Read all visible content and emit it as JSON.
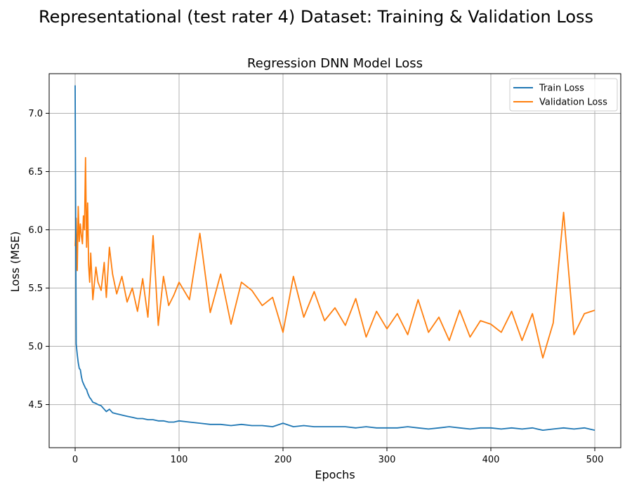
{
  "figure": {
    "suptitle": "Representational (test rater 4) Dataset: Training & Validation Loss"
  },
  "chart_data": {
    "type": "line",
    "title": "Regression DNN Model Loss",
    "xlabel": "Epochs",
    "ylabel": "Loss (MSE)",
    "xlim": [
      -25,
      525
    ],
    "ylim": [
      4.13,
      7.34
    ],
    "xticks": [
      0,
      100,
      200,
      300,
      400,
      500
    ],
    "yticks": [
      4.5,
      5.0,
      5.5,
      6.0,
      6.5,
      7.0
    ],
    "xtick_labels": [
      "0",
      "100",
      "200",
      "300",
      "400",
      "500"
    ],
    "ytick_labels": [
      "4.5",
      "5.0",
      "5.5",
      "6.0",
      "6.5",
      "7.0"
    ],
    "grid": true,
    "legend_position": "top-right",
    "x": [
      0,
      1,
      2,
      3,
      4,
      5,
      6,
      7,
      8,
      9,
      10,
      11,
      12,
      13,
      14,
      15,
      17,
      20,
      22,
      25,
      28,
      30,
      33,
      36,
      40,
      45,
      50,
      55,
      60,
      65,
      70,
      75,
      80,
      85,
      90,
      95,
      100,
      110,
      120,
      130,
      140,
      150,
      160,
      170,
      180,
      190,
      200,
      210,
      220,
      230,
      240,
      250,
      260,
      270,
      280,
      290,
      300,
      310,
      320,
      330,
      340,
      350,
      360,
      370,
      380,
      390,
      400,
      410,
      420,
      430,
      440,
      450,
      460,
      470,
      480,
      490,
      500
    ],
    "series": [
      {
        "name": "Train Loss",
        "color": "#1f77b4",
        "values": [
          7.24,
          5.02,
          4.93,
          4.86,
          4.81,
          4.8,
          4.74,
          4.7,
          4.68,
          4.66,
          4.64,
          4.63,
          4.6,
          4.58,
          4.56,
          4.55,
          4.52,
          4.51,
          4.5,
          4.49,
          4.46,
          4.44,
          4.46,
          4.43,
          4.42,
          4.41,
          4.4,
          4.39,
          4.38,
          4.38,
          4.37,
          4.37,
          4.36,
          4.36,
          4.35,
          4.35,
          4.36,
          4.35,
          4.34,
          4.33,
          4.33,
          4.32,
          4.33,
          4.32,
          4.32,
          4.31,
          4.34,
          4.31,
          4.32,
          4.31,
          4.31,
          4.31,
          4.31,
          4.3,
          4.31,
          4.3,
          4.3,
          4.3,
          4.31,
          4.3,
          4.29,
          4.3,
          4.31,
          4.3,
          4.29,
          4.3,
          4.3,
          4.29,
          4.3,
          4.29,
          4.3,
          4.28,
          4.29,
          4.3,
          4.29,
          4.3,
          4.28
        ]
      },
      {
        "name": "Validation Loss",
        "color": "#ff7f0e",
        "values": [
          5.86,
          6.1,
          5.65,
          6.2,
          5.9,
          6.05,
          5.95,
          5.88,
          6.12,
          6.0,
          6.62,
          5.85,
          6.23,
          5.7,
          5.55,
          5.8,
          5.4,
          5.68,
          5.55,
          5.48,
          5.72,
          5.42,
          5.85,
          5.62,
          5.45,
          5.6,
          5.38,
          5.5,
          5.3,
          5.58,
          5.25,
          5.95,
          5.18,
          5.6,
          5.35,
          5.44,
          5.55,
          5.4,
          5.97,
          5.29,
          5.62,
          5.19,
          5.55,
          5.48,
          5.35,
          5.42,
          5.12,
          5.6,
          5.25,
          5.47,
          5.22,
          5.33,
          5.18,
          5.41,
          5.08,
          5.3,
          5.15,
          5.28,
          5.1,
          5.4,
          5.12,
          5.25,
          5.05,
          5.31,
          5.08,
          5.22,
          5.19,
          5.12,
          5.3,
          5.05,
          5.28,
          4.9,
          5.2,
          6.15,
          5.1,
          5.28,
          5.31
        ]
      }
    ]
  }
}
